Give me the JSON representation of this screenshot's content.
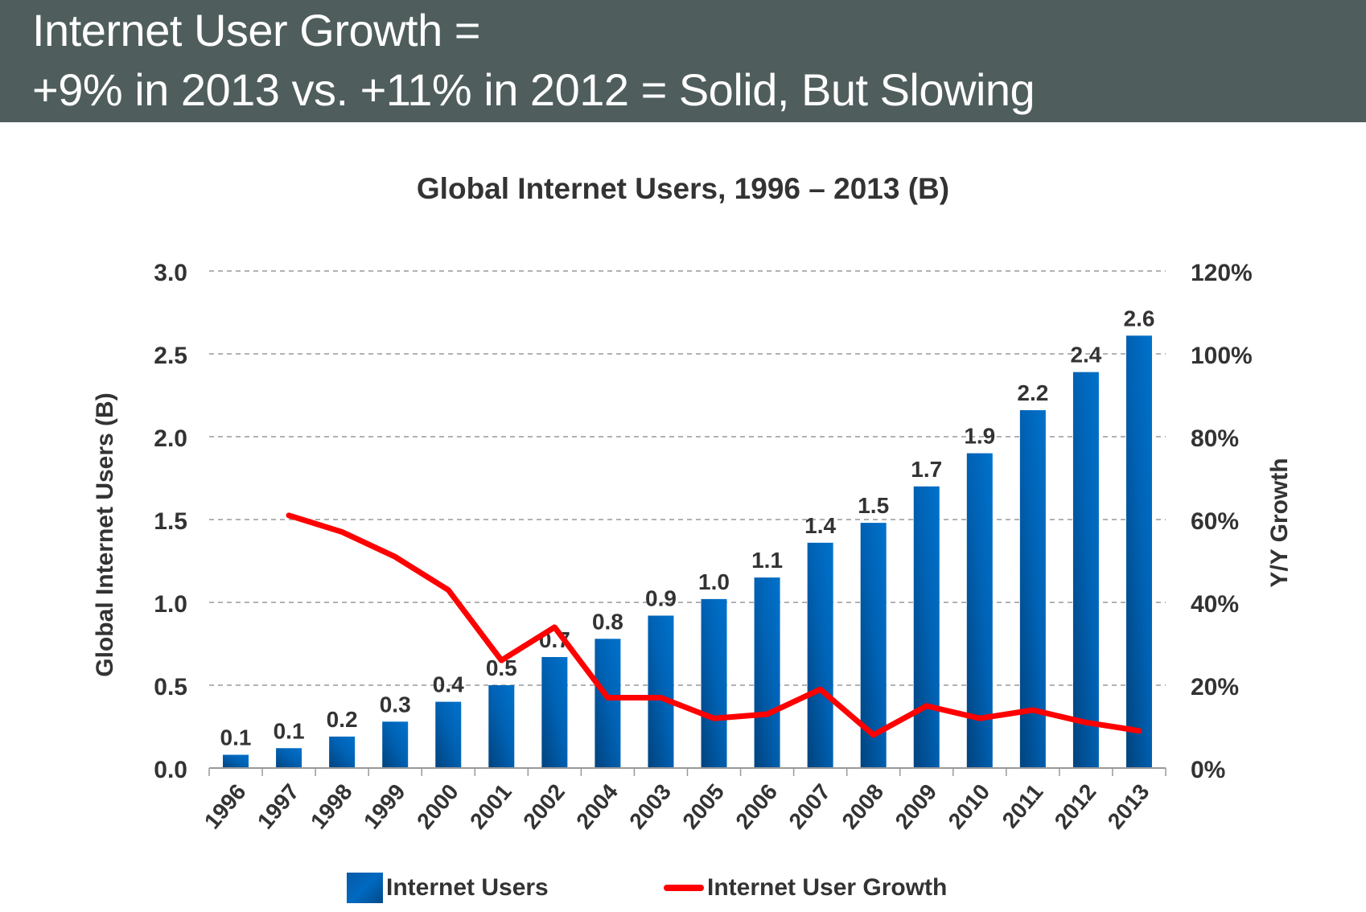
{
  "header": {
    "line1": "Internet User Growth =",
    "line2": "+9% in 2013 vs. +11% in 2012 = Solid, But Slowing"
  },
  "colors": {
    "header_bg": "#4f5e5c",
    "bar": "#0069c0",
    "bar_dark": "#004a8a",
    "line": "#ff0000",
    "text": "#333333",
    "grid": "#999999"
  },
  "chart_data": {
    "type": "bar+line",
    "title": "Global Internet Users, 1996 – 2013 (B)",
    "xlabel": "",
    "ylabel": "Global Internet Users (B)",
    "y2label": "Y/Y Growth",
    "categories": [
      "1996",
      "1997",
      "1998",
      "1999",
      "2000",
      "2001",
      "2002",
      "2004",
      "2003",
      "2005",
      "2006",
      "2007",
      "2008",
      "2009",
      "2010",
      "2011",
      "2012",
      "2013"
    ],
    "series": [
      {
        "name": "Internet Users",
        "type": "bar",
        "axis": "left",
        "values": [
          0.08,
          0.12,
          0.19,
          0.28,
          0.4,
          0.5,
          0.67,
          0.78,
          0.92,
          1.02,
          1.15,
          1.36,
          1.48,
          1.7,
          1.9,
          2.16,
          2.39,
          2.61
        ],
        "labels": [
          "0.1",
          "0.1",
          "0.2",
          "0.3",
          "0.4",
          "0.5",
          "0.7",
          "0.8",
          "0.9",
          "1.0",
          "1.1",
          "1.4",
          "1.5",
          "1.7",
          "1.9",
          "2.2",
          "2.4",
          "2.6"
        ]
      },
      {
        "name": "Internet User Growth",
        "type": "line",
        "axis": "right",
        "unit": "%",
        "values": [
          null,
          61,
          57,
          51,
          43,
          26,
          34,
          17,
          17,
          12,
          13,
          19,
          8,
          15,
          12,
          14,
          11,
          9
        ]
      }
    ],
    "ylim": [
      0,
      3.0
    ],
    "yticks": [
      "0.0",
      "0.5",
      "1.0",
      "1.5",
      "2.0",
      "2.5",
      "3.0"
    ],
    "y2lim": [
      0,
      120
    ],
    "y2ticks": [
      "0%",
      "20%",
      "40%",
      "60%",
      "80%",
      "100%",
      "120%"
    ],
    "grid": true,
    "grid_style": "dashed",
    "legend": {
      "position": "bottom",
      "entries": [
        "Internet Users",
        "Internet User Growth"
      ]
    }
  }
}
